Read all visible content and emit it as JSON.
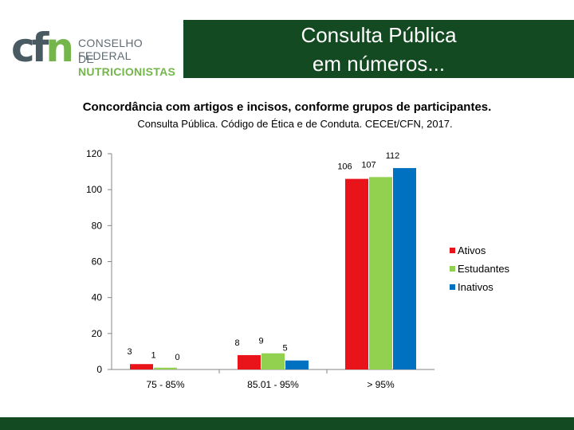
{
  "logo": {
    "mark_c": "c",
    "mark_f": "f",
    "mark_n": "n",
    "line1": "CONSELHO FEDERAL",
    "line2_prefix": "DE",
    "line2_bold": "NUTRICIONISTAS"
  },
  "banner": {
    "line1": "Consulta Pública",
    "line2": "em números..."
  },
  "colors": {
    "banner_bg": "#134a22",
    "ativos": "#e8141a",
    "estudantes": "#92d050",
    "inativos": "#0070c0"
  },
  "chart_data": {
    "type": "bar",
    "title": "Concordância com artigos e incisos, conforme grupos de participantes.",
    "subtitle": "Consulta Pública. Código de Ética e de Conduta. CECEt/CFN, 2017.",
    "categories": [
      "75 - 85%",
      "85.01 - 95%",
      "> 95%"
    ],
    "series": [
      {
        "name": "Ativos",
        "values": [
          3,
          8,
          106
        ],
        "color": "#e8141a"
      },
      {
        "name": "Estudantes",
        "values": [
          1,
          9,
          107
        ],
        "color": "#92d050"
      },
      {
        "name": "Inativos",
        "values": [
          0,
          5,
          112
        ],
        "color": "#0070c0"
      }
    ],
    "ylim": [
      0,
      120
    ],
    "yticks": [
      0,
      20,
      40,
      60,
      80,
      100,
      120
    ],
    "grid": false,
    "legend": "right"
  }
}
